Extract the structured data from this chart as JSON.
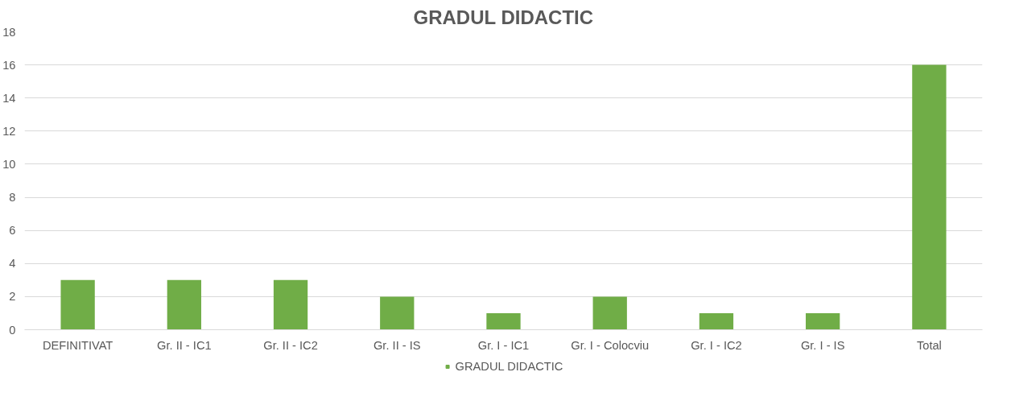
{
  "chart_data": {
    "type": "bar",
    "title": "GRADUL DIDACTIC",
    "categories": [
      "DEFINITIVAT",
      "Gr. II - IC1",
      "Gr. II - IC2",
      "Gr. II - IS",
      "Gr. I - IC1",
      "Gr. I - Colocviu",
      "Gr. I - IC2",
      "Gr. I - IS",
      "Total"
    ],
    "series": [
      {
        "name": "GRADUL DIDACTIC",
        "color": "#70ad47",
        "values": [
          3,
          3,
          3,
          2,
          1,
          2,
          1,
          1,
          16
        ]
      }
    ],
    "ylim": [
      0,
      18
    ],
    "yticks": [
      0,
      2,
      4,
      6,
      8,
      10,
      12,
      14,
      16,
      18
    ],
    "grid": "y",
    "legend": "bottom"
  }
}
